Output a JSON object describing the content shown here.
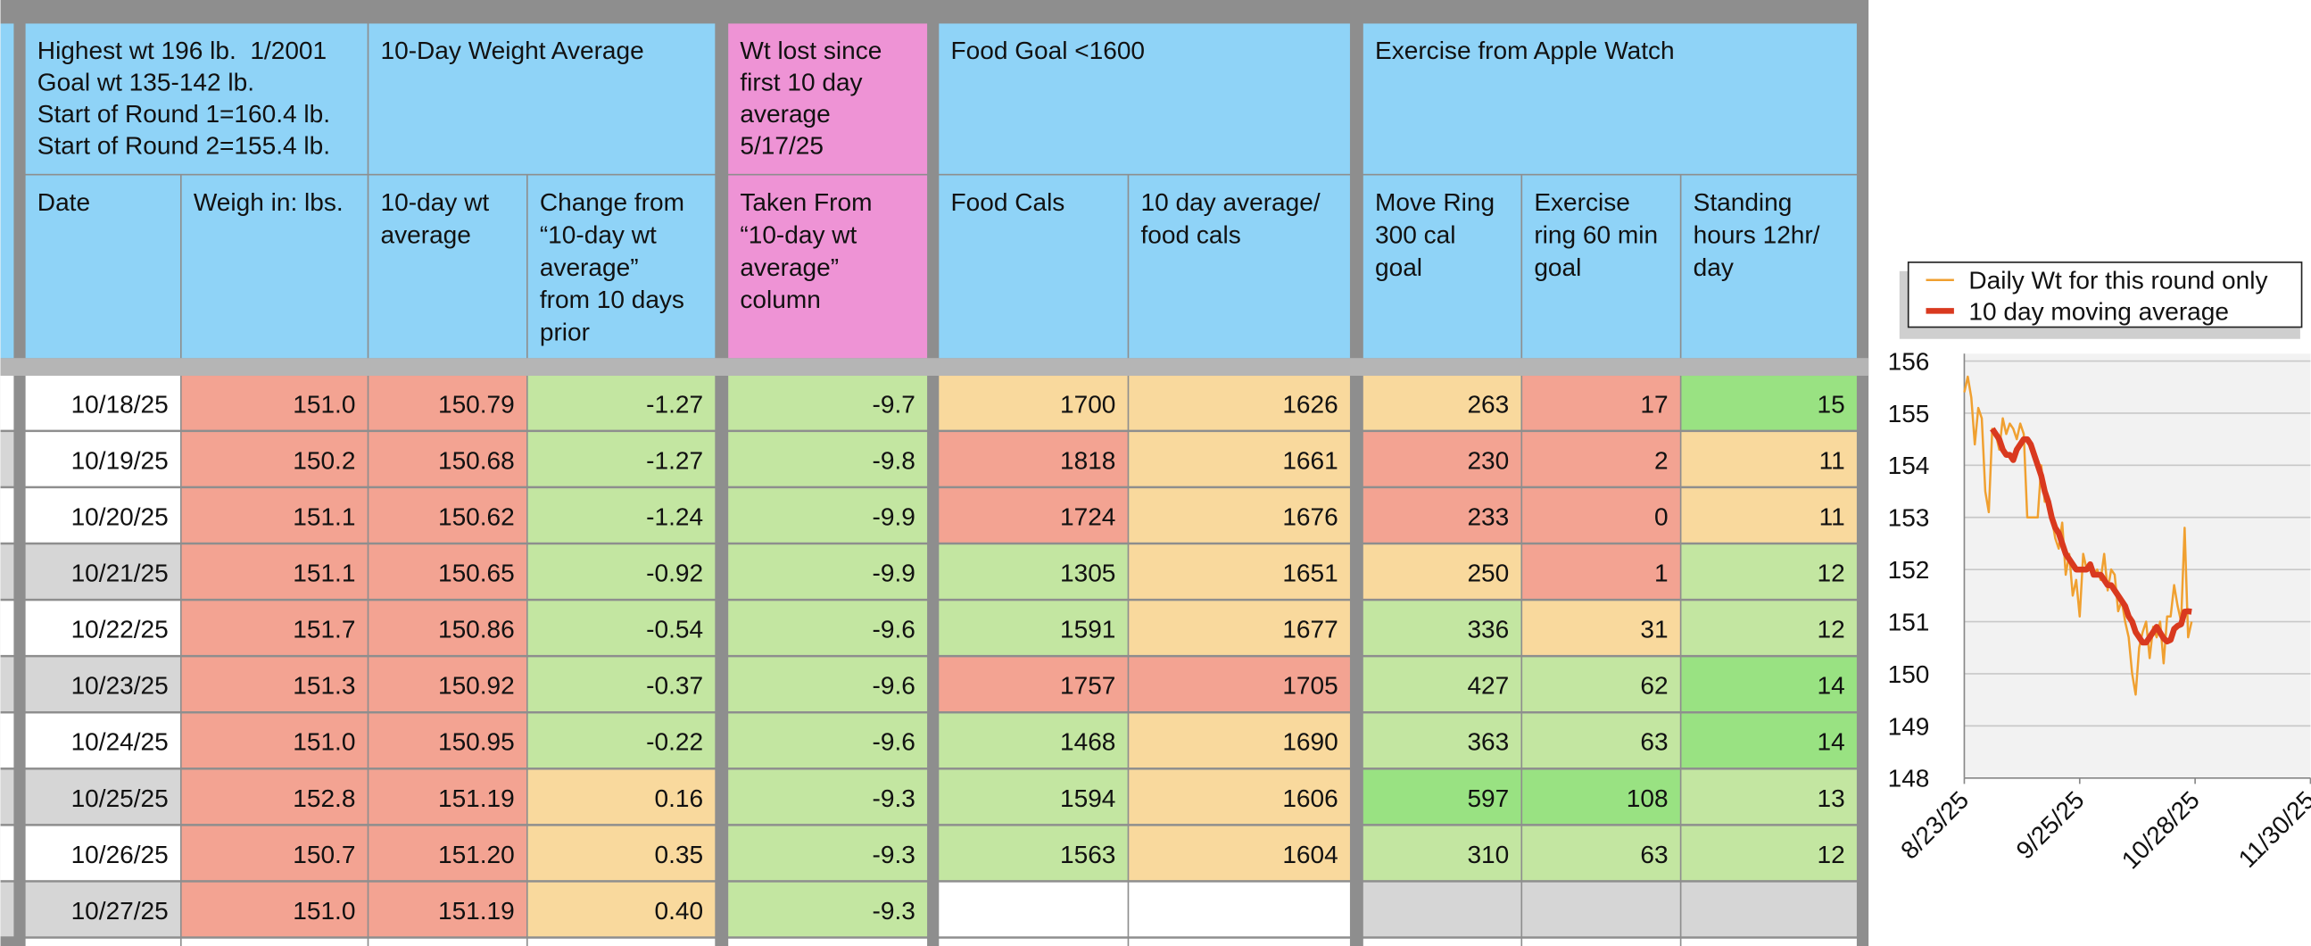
{
  "group_headers": [
    {
      "lines": [
        "Highest wt 196 lb.  1/2001",
        "Goal wt 135-142 lb.",
        "Start of Round 1=160.4 lb.",
        "Start of Round 2=155.4 lb."
      ],
      "color": "#8fd3f7"
    },
    {
      "lines": [
        "10-Day Weight Average"
      ],
      "color": "#8fd3f7"
    },
    {
      "lines": [
        "Wt lost since",
        "first 10 day",
        "average",
        "5/17/25"
      ],
      "color": "#ee93d5"
    },
    {
      "lines": [
        "Food Goal <1600"
      ],
      "color": "#8fd3f7"
    },
    {
      "lines": [
        "Exercise from Apple Watch"
      ],
      "color": "#8fd3f7"
    }
  ],
  "column_headers": [
    {
      "lines": [
        "Date"
      ],
      "color": "#8fd3f7"
    },
    {
      "lines": [
        "Weigh in: lbs."
      ],
      "color": "#8fd3f7"
    },
    {
      "lines": [
        "10-day wt",
        "average"
      ],
      "color": "#8fd3f7"
    },
    {
      "lines": [
        "Change from",
        "“10-day wt",
        "average”",
        "from 10 days",
        "prior"
      ],
      "color": "#8fd3f7"
    },
    {
      "lines": [
        "Taken From",
        "“10-day wt",
        "average”",
        "column"
      ],
      "color": "#ee93d5"
    },
    {
      "lines": [
        "Food Cals"
      ],
      "color": "#8fd3f7"
    },
    {
      "lines": [
        "10 day average/",
        "food cals"
      ],
      "color": "#8fd3f7"
    },
    {
      "lines": [
        "Move Ring",
        "300 cal",
        "goal"
      ],
      "color": "#8fd3f7"
    },
    {
      "lines": [
        "Exercise",
        "ring 60 min",
        "goal"
      ],
      "color": "#8fd3f7"
    },
    {
      "lines": [
        "Standing",
        "hours 12hr/",
        "day"
      ],
      "color": "#8fd3f7"
    }
  ],
  "rows": [
    {
      "cells": [
        "10/18/25",
        "151.0",
        "150.79",
        "-1.27",
        "-9.7",
        "1700",
        "1626",
        "263",
        "17",
        "15"
      ],
      "fills": [
        "#ffffff",
        "#f3a392",
        "#f3a392",
        "#c3e6a1",
        "#c3e6a1",
        "#f9d99d",
        "#f9d99d",
        "#f9d99d",
        "#f3a392",
        "#99e282"
      ]
    },
    {
      "cells": [
        "10/19/25",
        "150.2",
        "150.68",
        "-1.27",
        "-9.8",
        "1818",
        "1661",
        "230",
        "2",
        "11"
      ],
      "fills": [
        "#ffffff",
        "#f3a392",
        "#f3a392",
        "#c3e6a1",
        "#c3e6a1",
        "#f3a392",
        "#f9d99d",
        "#f3a392",
        "#f3a392",
        "#f9d99d"
      ]
    },
    {
      "cells": [
        "10/20/25",
        "151.1",
        "150.62",
        "-1.24",
        "-9.9",
        "1724",
        "1676",
        "233",
        "0",
        "11"
      ],
      "fills": [
        "#ffffff",
        "#f3a392",
        "#f3a392",
        "#c3e6a1",
        "#c3e6a1",
        "#f3a392",
        "#f9d99d",
        "#f3a392",
        "#f3a392",
        "#f9d99d"
      ]
    },
    {
      "cells": [
        "10/21/25",
        "151.1",
        "150.65",
        "-0.92",
        "-9.9",
        "1305",
        "1651",
        "250",
        "1",
        "12"
      ],
      "fills": [
        "#d6d6d6",
        "#f3a392",
        "#f3a392",
        "#c3e6a1",
        "#c3e6a1",
        "#c3e6a1",
        "#f9d99d",
        "#f9d99d",
        "#f3a392",
        "#c3e6a1"
      ]
    },
    {
      "cells": [
        "10/22/25",
        "151.7",
        "150.86",
        "-0.54",
        "-9.6",
        "1591",
        "1677",
        "336",
        "31",
        "12"
      ],
      "fills": [
        "#ffffff",
        "#f3a392",
        "#f3a392",
        "#c3e6a1",
        "#c3e6a1",
        "#c3e6a1",
        "#f9d99d",
        "#c3e6a1",
        "#f9d99d",
        "#c3e6a1"
      ]
    },
    {
      "cells": [
        "10/23/25",
        "151.3",
        "150.92",
        "-0.37",
        "-9.6",
        "1757",
        "1705",
        "427",
        "62",
        "14"
      ],
      "fills": [
        "#d6d6d6",
        "#f3a392",
        "#f3a392",
        "#c3e6a1",
        "#c3e6a1",
        "#f3a392",
        "#f3a392",
        "#c3e6a1",
        "#c3e6a1",
        "#99e282"
      ]
    },
    {
      "cells": [
        "10/24/25",
        "151.0",
        "150.95",
        "-0.22",
        "-9.6",
        "1468",
        "1690",
        "363",
        "63",
        "14"
      ],
      "fills": [
        "#ffffff",
        "#f3a392",
        "#f3a392",
        "#c3e6a1",
        "#c3e6a1",
        "#c3e6a1",
        "#f9d99d",
        "#c3e6a1",
        "#c3e6a1",
        "#99e282"
      ]
    },
    {
      "cells": [
        "10/25/25",
        "152.8",
        "151.19",
        "0.16",
        "-9.3",
        "1594",
        "1606",
        "597",
        "108",
        "13"
      ],
      "fills": [
        "#d6d6d6",
        "#f3a392",
        "#f3a392",
        "#f9d99d",
        "#c3e6a1",
        "#c3e6a1",
        "#f9d99d",
        "#99e282",
        "#99e282",
        "#c3e6a1"
      ]
    },
    {
      "cells": [
        "10/26/25",
        "150.7",
        "151.20",
        "0.35",
        "-9.3",
        "1563",
        "1604",
        "310",
        "63",
        "12"
      ],
      "fills": [
        "#ffffff",
        "#f3a392",
        "#f3a392",
        "#f9d99d",
        "#c3e6a1",
        "#c3e6a1",
        "#f9d99d",
        "#c3e6a1",
        "#c3e6a1",
        "#c3e6a1"
      ]
    },
    {
      "cells": [
        "10/27/25",
        "151.0",
        "151.19",
        "0.40",
        "-9.3",
        null,
        null,
        null,
        null,
        null
      ],
      "fills": [
        "#d6d6d6",
        "#f3a392",
        "#f3a392",
        "#f9d99d",
        "#c3e6a1",
        "#ffffff",
        "#ffffff",
        "#d6d6d6",
        "#d6d6d6",
        "#d6d6d6"
      ]
    }
  ],
  "chart_data": {
    "type": "line",
    "x": [
      "8/23/25",
      "8/24/25",
      "8/25/25",
      "8/26/25",
      "8/27/25",
      "8/28/25",
      "8/29/25",
      "8/30/25",
      "8/31/25",
      "9/1/25",
      "9/2/25",
      "9/3/25",
      "9/4/25",
      "9/5/25",
      "9/6/25",
      "9/7/25",
      "9/8/25",
      "9/9/25",
      "9/10/25",
      "9/11/25",
      "9/12/25",
      "9/13/25",
      "9/14/25",
      "9/15/25",
      "9/16/25",
      "9/17/25",
      "9/18/25",
      "9/19/25",
      "9/20/25",
      "9/21/25",
      "9/22/25",
      "9/23/25",
      "9/24/25",
      "9/25/25",
      "9/26/25",
      "9/27/25",
      "9/28/25",
      "9/29/25",
      "9/30/25",
      "10/1/25",
      "10/2/25",
      "10/3/25",
      "10/4/25",
      "10/5/25",
      "10/6/25",
      "10/7/25",
      "10/8/25",
      "10/9/25",
      "10/10/25",
      "10/11/25",
      "10/12/25",
      "10/13/25",
      "10/14/25",
      "10/15/25",
      "10/16/25",
      "10/17/25",
      "10/18/25",
      "10/19/25",
      "10/20/25",
      "10/21/25",
      "10/22/25",
      "10/23/25",
      "10/24/25",
      "10/25/25",
      "10/26/25",
      "10/27/25"
    ],
    "series": [
      {
        "name": "Daily Wt for this round only",
        "color": "#f0a030",
        "values": [
          155.4,
          155.7,
          155.3,
          154.4,
          155.1,
          154.9,
          153.5,
          153.1,
          154.7,
          154.6,
          154.3,
          154.9,
          154.6,
          154.8,
          154.7,
          154.5,
          154.8,
          154.6,
          153.0,
          153.0,
          153.0,
          153.0,
          154.0,
          153.3,
          153.4,
          153.0,
          152.6,
          152.4,
          152.9,
          151.9,
          152.3,
          151.5,
          151.8,
          151.1,
          152.3,
          152.0,
          152.1,
          151.9,
          152.0,
          151.8,
          152.3,
          151.6,
          152.0,
          151.9,
          151.2,
          151.4,
          151.0,
          150.7,
          150.0,
          149.6,
          150.5,
          150.8,
          151.0,
          150.3,
          150.9,
          150.7,
          151.0,
          150.2,
          151.1,
          151.1,
          151.7,
          151.3,
          151.0,
          152.8,
          150.7,
          151.0
        ]
      },
      {
        "name": "10 day moving average",
        "color": "#d9391f",
        "values": [
          null,
          null,
          null,
          null,
          null,
          null,
          null,
          null,
          154.7,
          154.6,
          154.5,
          154.3,
          154.2,
          154.2,
          154.1,
          154.3,
          154.4,
          154.5,
          154.5,
          154.4,
          154.2,
          154.0,
          153.8,
          153.5,
          153.3,
          153.0,
          152.8,
          152.7,
          152.5,
          152.3,
          152.2,
          152.1,
          152.0,
          152.0,
          152.0,
          152.0,
          152.1,
          151.9,
          151.9,
          151.9,
          151.8,
          151.7,
          151.7,
          151.6,
          151.5,
          151.4,
          151.3,
          151.1,
          151.0,
          150.8,
          150.7,
          150.6,
          150.6,
          150.7,
          150.8,
          150.9,
          150.79,
          150.68,
          150.62,
          150.65,
          150.86,
          150.92,
          150.95,
          151.19,
          151.2,
          151.19
        ]
      }
    ],
    "xlim": [
      "8/23/25",
      "11/30/25"
    ],
    "xticks": [
      "8/23/25",
      "9/25/25",
      "10/28/25",
      "11/30/25"
    ],
    "ylim": [
      148,
      156
    ],
    "yticks": [
      148,
      149,
      150,
      151,
      152,
      153,
      154,
      155,
      156
    ],
    "grid": true
  }
}
